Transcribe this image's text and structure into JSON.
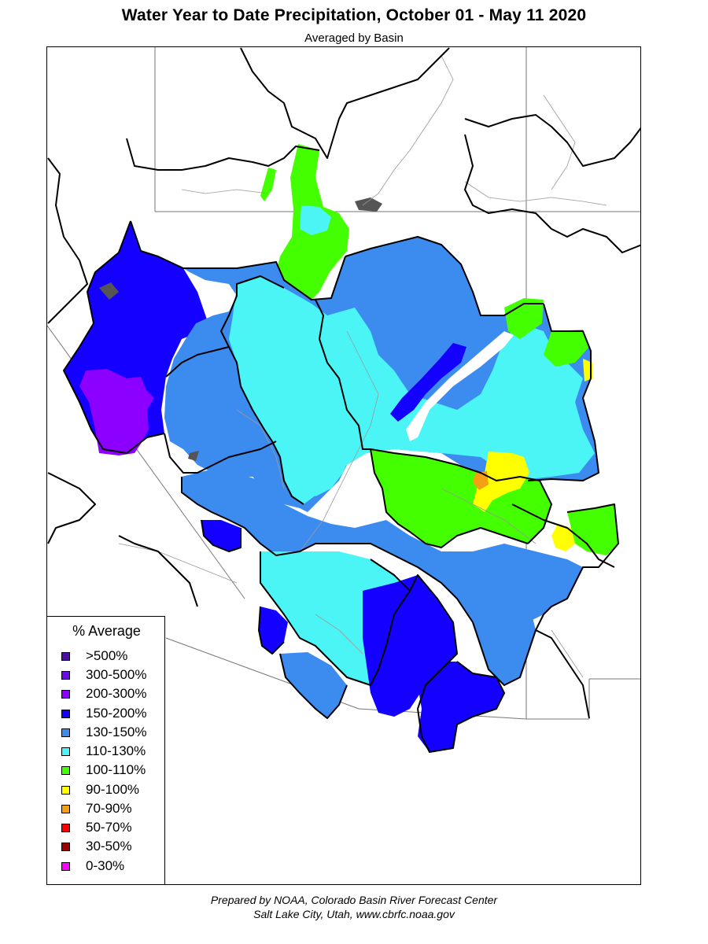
{
  "title": "Water Year to Date Precipitation, October 01  - May 11 2020",
  "subtitle": "Averaged by Basin",
  "legend": {
    "title": "% Average",
    "items": [
      {
        "label": ">500%",
        "color": "#4b0fa3"
      },
      {
        "label": "300-500%",
        "color": "#6a0ae6"
      },
      {
        "label": "200-300%",
        "color": "#8c00ff"
      },
      {
        "label": "150-200%",
        "color": "#1400ff"
      },
      {
        "label": "130-150%",
        "color": "#3c8cf0"
      },
      {
        "label": "110-130%",
        "color": "#4cf5f5"
      },
      {
        "label": "100-110%",
        "color": "#44ff00"
      },
      {
        "label": "90-100%",
        "color": "#ffff00"
      },
      {
        "label": "70-90%",
        "color": "#f5a014"
      },
      {
        "label": "50-70%",
        "color": "#ff0000"
      },
      {
        "label": "30-50%",
        "color": "#9b0000"
      },
      {
        "label": "0-30%",
        "color": "#ff00ff"
      }
    ]
  },
  "footer": {
    "line1": "Prepared by NOAA, Colorado Basin River Forecast Center",
    "line2": "Salt Lake City, Utah, www.cbrfc.noaa.gov"
  }
}
